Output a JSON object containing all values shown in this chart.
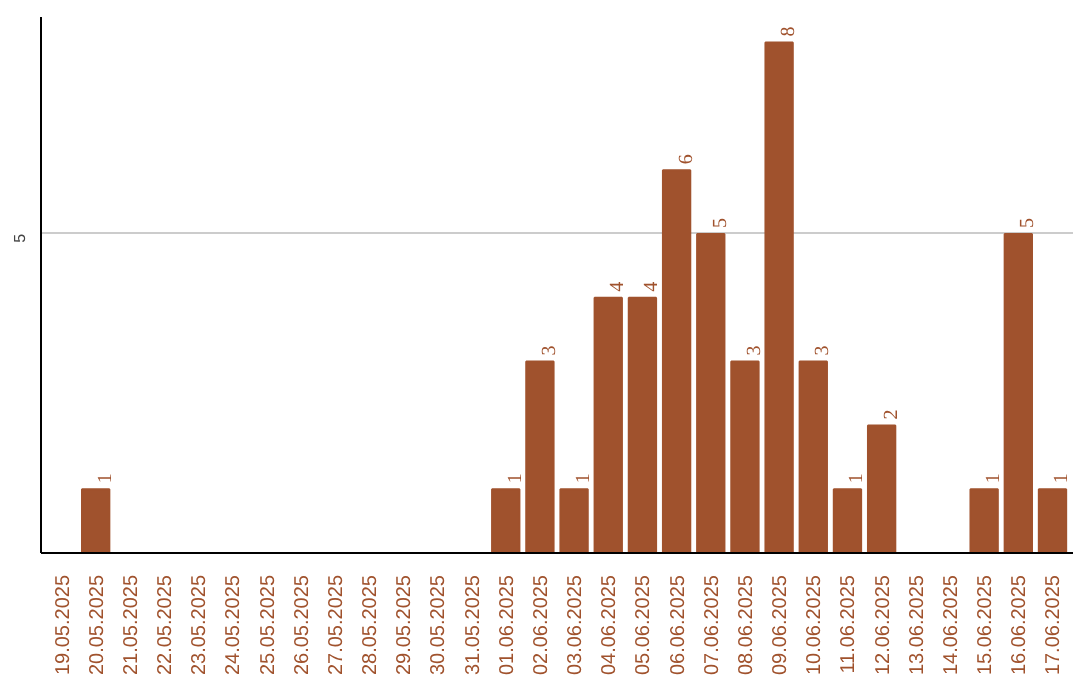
{
  "chart_data": {
    "type": "bar",
    "categories": [
      "19.05.2025",
      "20.05.2025",
      "21.05.2025",
      "22.05.2025",
      "23.05.2025",
      "24.05.2025",
      "25.05.2025",
      "26.05.2025",
      "27.05.2025",
      "28.05.2025",
      "29.05.2025",
      "30.05.2025",
      "31.05.2025",
      "01.06.2025",
      "02.06.2025",
      "03.06.2025",
      "04.06.2025",
      "05.06.2025",
      "06.06.2025",
      "07.06.2025",
      "08.06.2025",
      "09.06.2025",
      "10.06.2025",
      "11.06.2025",
      "12.06.2025",
      "13.06.2025",
      "14.06.2025",
      "15.06.2025",
      "16.06.2025",
      "17.06.2025"
    ],
    "values": [
      0,
      1,
      0,
      0,
      0,
      0,
      0,
      0,
      0,
      0,
      0,
      0,
      0,
      1,
      3,
      1,
      4,
      4,
      6,
      5,
      3,
      8,
      3,
      1,
      2,
      0,
      0,
      1,
      5,
      1
    ],
    "value_labels": [
      null,
      "1",
      null,
      null,
      null,
      null,
      null,
      null,
      null,
      null,
      null,
      null,
      null,
      "1",
      "3",
      "1",
      "4",
      "4",
      "6",
      "5",
      "3",
      "8",
      "3",
      "1",
      "2",
      null,
      null,
      "1",
      "5",
      "1"
    ],
    "color": "#a0522d",
    "ylim": [
      0,
      8.4
    ],
    "yticks": [
      5
    ],
    "grid": "y"
  }
}
